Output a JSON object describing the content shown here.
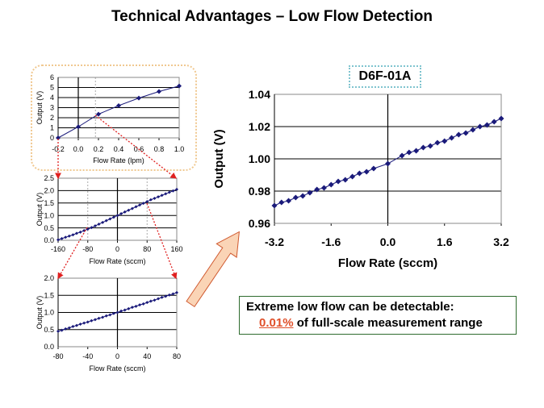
{
  "title": "Technical Advantages – Low Flow Detection",
  "model_label": "D6F-01A",
  "callout": {
    "line1": "Extreme low flow can be detectable:",
    "percent": "0.01%",
    "line2_rest": "of full-scale measurement range"
  },
  "colors": {
    "series": "#1a1a7a",
    "zoom_arrow": "#e02020",
    "highlight": "#e0502a",
    "callout_border": "#2e6b2e",
    "big_arrow": "#f5b07a"
  },
  "chart_data": [
    {
      "id": "chart-lpm",
      "type": "line",
      "xlabel": "Flow Rate (lpm)",
      "ylabel": "Output (V)",
      "xlim": [
        -0.2,
        1.0
      ],
      "ylim": [
        0,
        6
      ],
      "xticks": [
        "-0.2",
        "0.0",
        "0.2",
        "0.4",
        "0.6",
        "0.8",
        "1.0"
      ],
      "xtick_values": [
        -0.2,
        0,
        0.2,
        0.4,
        0.6,
        0.8,
        1.0
      ],
      "yticks": [
        "0",
        "1",
        "2",
        "3",
        "4",
        "5",
        "6"
      ],
      "ytick_values": [
        0,
        1,
        2,
        3,
        4,
        5,
        6
      ],
      "x": [
        -0.2,
        0,
        0.2,
        0.4,
        0.6,
        0.8,
        1.0
      ],
      "y": [
        0,
        1.1,
        2.35,
        3.2,
        3.95,
        4.6,
        5.15
      ],
      "grid": true
    },
    {
      "id": "chart-160",
      "type": "line",
      "xlabel": "Flow Rate (sccm)",
      "ylabel": "Output (V)",
      "xlim": [
        -160,
        160
      ],
      "ylim": [
        0,
        2.5
      ],
      "xticks": [
        "-160",
        "-80",
        "0",
        "80",
        "160"
      ],
      "xtick_values": [
        -160,
        -80,
        0,
        80,
        160
      ],
      "yticks": [
        "0.0",
        "0.5",
        "1.0",
        "1.5",
        "2.0",
        "2.5"
      ],
      "ytick_values": [
        0,
        0.5,
        1,
        1.5,
        2,
        2.5
      ],
      "x": [
        -160,
        -150,
        -140,
        -130,
        -120,
        -110,
        -100,
        -90,
        -80,
        -70,
        -60,
        -50,
        -40,
        -30,
        -20,
        -10,
        0,
        10,
        20,
        30,
        40,
        50,
        60,
        70,
        80,
        90,
        100,
        110,
        120,
        130,
        140,
        150,
        160
      ],
      "y": [
        0.02,
        0.07,
        0.12,
        0.17,
        0.22,
        0.28,
        0.33,
        0.39,
        0.45,
        0.51,
        0.58,
        0.65,
        0.72,
        0.79,
        0.86,
        0.93,
        1.0,
        1.07,
        1.14,
        1.21,
        1.28,
        1.35,
        1.42,
        1.49,
        1.56,
        1.63,
        1.69,
        1.75,
        1.81,
        1.87,
        1.93,
        1.99,
        2.05
      ],
      "grid": true
    },
    {
      "id": "chart-80",
      "type": "line",
      "xlabel": "Flow Rate (sccm)",
      "ylabel": "Output (V)",
      "xlim": [
        -80,
        80
      ],
      "ylim": [
        0,
        2.0
      ],
      "xticks": [
        "-80",
        "-40",
        "0",
        "40",
        "80"
      ],
      "xtick_values": [
        -80,
        -40,
        0,
        40,
        80
      ],
      "yticks": [
        "0.0",
        "0.5",
        "1.0",
        "1.5",
        "2.0"
      ],
      "ytick_values": [
        0,
        0.5,
        1,
        1.5,
        2
      ],
      "x": [
        -80,
        -75,
        -70,
        -65,
        -60,
        -55,
        -50,
        -45,
        -40,
        -35,
        -30,
        -25,
        -20,
        -15,
        -10,
        -5,
        0,
        5,
        10,
        15,
        20,
        25,
        30,
        35,
        40,
        45,
        50,
        55,
        60,
        65,
        70,
        75,
        80
      ],
      "y": [
        0.45,
        0.48,
        0.52,
        0.55,
        0.59,
        0.62,
        0.66,
        0.69,
        0.72,
        0.76,
        0.79,
        0.83,
        0.86,
        0.9,
        0.93,
        0.97,
        1.0,
        1.04,
        1.07,
        1.11,
        1.15,
        1.18,
        1.22,
        1.25,
        1.29,
        1.33,
        1.36,
        1.4,
        1.44,
        1.47,
        1.51,
        1.54,
        1.58
      ],
      "grid": true
    },
    {
      "id": "chart-main",
      "type": "line",
      "xlabel": "Flow Rate (sccm)",
      "ylabel": "Output (V)",
      "xlim": [
        -3.2,
        3.2
      ],
      "ylim": [
        0.96,
        1.04
      ],
      "xticks": [
        "-3.2",
        "-1.6",
        "0.0",
        "1.6",
        "3.2"
      ],
      "xtick_values": [
        -3.2,
        -1.6,
        0,
        1.6,
        3.2
      ],
      "yticks": [
        "0.96",
        "0.98",
        "1.00",
        "1.02",
        "1.04"
      ],
      "ytick_values": [
        0.96,
        0.98,
        1.0,
        1.02,
        1.04
      ],
      "x": [
        -3.2,
        -3.0,
        -2.8,
        -2.6,
        -2.4,
        -2.2,
        -2.0,
        -1.8,
        -1.6,
        -1.4,
        -1.2,
        -1.0,
        -0.8,
        -0.6,
        -0.4,
        0,
        0.4,
        0.6,
        0.8,
        1.0,
        1.2,
        1.4,
        1.6,
        1.8,
        2.0,
        2.2,
        2.4,
        2.6,
        2.8,
        3.0,
        3.2
      ],
      "y": [
        0.971,
        0.973,
        0.974,
        0.976,
        0.977,
        0.979,
        0.981,
        0.982,
        0.984,
        0.986,
        0.987,
        0.989,
        0.991,
        0.992,
        0.994,
        0.997,
        1.002,
        1.004,
        1.005,
        1.007,
        1.008,
        1.01,
        1.011,
        1.013,
        1.015,
        1.016,
        1.018,
        1.02,
        1.021,
        1.023,
        1.025
      ],
      "grid": true
    }
  ]
}
